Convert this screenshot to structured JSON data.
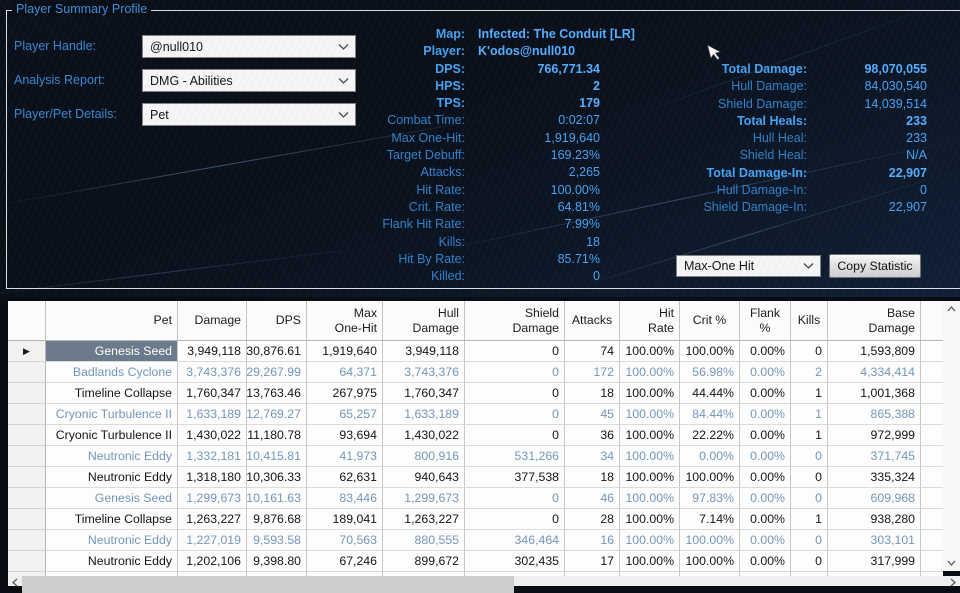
{
  "colors": {
    "accent_blue": "#46a2f2",
    "label_blue": "#3181c9",
    "selected_cell_bg": "#6b7b8b",
    "alt_row_text": "#7296ba",
    "panel_bg": "#0c1523"
  },
  "profile": {
    "title": "Player Summary Profile",
    "fields": [
      {
        "label": "Player Handle:",
        "value": "@null010"
      },
      {
        "label": "Analysis Report:",
        "value": "DMG - Abilities"
      },
      {
        "label": "Player/Pet Details:",
        "value": "Pet"
      }
    ]
  },
  "stats_center": [
    {
      "label": "Map:",
      "value": "Infected: The Conduit [LR]",
      "strong": true,
      "value_align": "left"
    },
    {
      "label": "Player:",
      "value": "K'odos@null010",
      "strong": true,
      "value_align": "left"
    },
    {
      "label": "DPS:",
      "value": "766,771.34",
      "strong": true
    },
    {
      "label": "HPS:",
      "value": "2",
      "strong": true
    },
    {
      "label": "TPS:",
      "value": "179",
      "strong": true
    },
    {
      "label": "Combat Time:",
      "value": "0:02:07"
    },
    {
      "label": "Max One-Hit:",
      "value": "1,919,640"
    },
    {
      "label": "Target Debuff:",
      "value": "169.23%"
    },
    {
      "label": "Attacks:",
      "value": "2,265"
    },
    {
      "label": "Hit Rate:",
      "value": "100.00%"
    },
    {
      "label": "Crit. Rate:",
      "value": "64.81%"
    },
    {
      "label": "Flank Hit Rate:",
      "value": "7.99%"
    },
    {
      "label": "Kills:",
      "value": "18"
    },
    {
      "label": "Hit By Rate:",
      "value": "85.71%"
    },
    {
      "label": "Killed:",
      "value": "0"
    }
  ],
  "stats_right": [
    {
      "label": "Total Damage:",
      "value": "98,070,055",
      "strong": true
    },
    {
      "label": "Hull Damage:",
      "value": "84,030,540"
    },
    {
      "label": "Shield Damage:",
      "value": "14,039,514"
    },
    {
      "label": "Total Heals:",
      "value": "233",
      "strong": true
    },
    {
      "label": "Hull Heal:",
      "value": "233"
    },
    {
      "label": "Shield Heal:",
      "value": "N/A"
    },
    {
      "label": "Total Damage-In:",
      "value": "22,907",
      "strong": true
    },
    {
      "label": "Hull Damage-In:",
      "value": "0"
    },
    {
      "label": "Shield Damage-In:",
      "value": "22,907"
    }
  ],
  "statistic_picker": {
    "selected": "Max-One Hit",
    "button_label": "Copy Statistic"
  },
  "table": {
    "columns": [
      {
        "key": "selector",
        "label": ""
      },
      {
        "key": "pet",
        "label": "Pet"
      },
      {
        "key": "damage",
        "label": "Damage"
      },
      {
        "key": "dps",
        "label": "DPS"
      },
      {
        "key": "max_one_hit",
        "label": "Max\nOne-Hit"
      },
      {
        "key": "hull_damage",
        "label": "Hull\nDamage"
      },
      {
        "key": "shield_damage",
        "label": "Shield\nDamage"
      },
      {
        "key": "attacks",
        "label": "Attacks"
      },
      {
        "key": "hit_rate",
        "label": "Hit\nRate"
      },
      {
        "key": "crit_pct",
        "label": "Crit %"
      },
      {
        "key": "flank_pct",
        "label": "Flank\n%"
      },
      {
        "key": "kills",
        "label": "Kills"
      },
      {
        "key": "base_damage",
        "label": "Base\nDamage"
      }
    ],
    "rows": [
      {
        "pet": "Genesis Seed",
        "selected": true,
        "cells": [
          "3,949,118",
          "30,876.61",
          "1,919,640",
          "3,949,118",
          "0",
          "74",
          "100.00%",
          "100.00%",
          "0.00%",
          "0",
          "1,593,809"
        ]
      },
      {
        "pet": "Badlands Cyclone",
        "cells": [
          "3,743,376",
          "29,267.99",
          "64,371",
          "3,743,376",
          "0",
          "172",
          "100.00%",
          "56.98%",
          "0.00%",
          "2",
          "4,334,414"
        ]
      },
      {
        "pet": "Timeline Collapse",
        "cells": [
          "1,760,347",
          "13,763.46",
          "267,975",
          "1,760,347",
          "0",
          "18",
          "100.00%",
          "44.44%",
          "0.00%",
          "1",
          "1,001,368"
        ]
      },
      {
        "pet": "Cryonic Turbulence II",
        "cells": [
          "1,633,189",
          "12,769.27",
          "65,257",
          "1,633,189",
          "0",
          "45",
          "100.00%",
          "84.44%",
          "0.00%",
          "1",
          "865,388"
        ]
      },
      {
        "pet": "Cryonic Turbulence II",
        "cells": [
          "1,430,022",
          "11,180.78",
          "93,694",
          "1,430,022",
          "0",
          "36",
          "100.00%",
          "22.22%",
          "0.00%",
          "1",
          "972,999"
        ]
      },
      {
        "pet": "Neutronic Eddy",
        "cells": [
          "1,332,181",
          "10,415.81",
          "41,973",
          "800,916",
          "531,266",
          "34",
          "100.00%",
          "0.00%",
          "0.00%",
          "0",
          "371,745"
        ]
      },
      {
        "pet": "Neutronic Eddy",
        "cells": [
          "1,318,180",
          "10,306.33",
          "62,631",
          "940,643",
          "377,538",
          "18",
          "100.00%",
          "100.00%",
          "0.00%",
          "0",
          "335,324"
        ]
      },
      {
        "pet": "Genesis Seed",
        "cells": [
          "1,299,673",
          "10,161.63",
          "83,446",
          "1,299,673",
          "0",
          "46",
          "100.00%",
          "97.83%",
          "0.00%",
          "0",
          "609,968"
        ]
      },
      {
        "pet": "Timeline Collapse",
        "cells": [
          "1,263,227",
          "9,876.68",
          "189,041",
          "1,263,227",
          "0",
          "28",
          "100.00%",
          "7.14%",
          "0.00%",
          "1",
          "938,280"
        ]
      },
      {
        "pet": "Neutronic Eddy",
        "cells": [
          "1,227,019",
          "9,593.58",
          "70,563",
          "880,555",
          "346,464",
          "16",
          "100.00%",
          "100.00%",
          "0.00%",
          "0",
          "303,101"
        ]
      },
      {
        "pet": "Neutronic Eddy",
        "cells": [
          "1,202,106",
          "9,398.80",
          "67,246",
          "899,672",
          "302,435",
          "17",
          "100.00%",
          "100.00%",
          "0.00%",
          "0",
          "317,999"
        ]
      }
    ]
  }
}
